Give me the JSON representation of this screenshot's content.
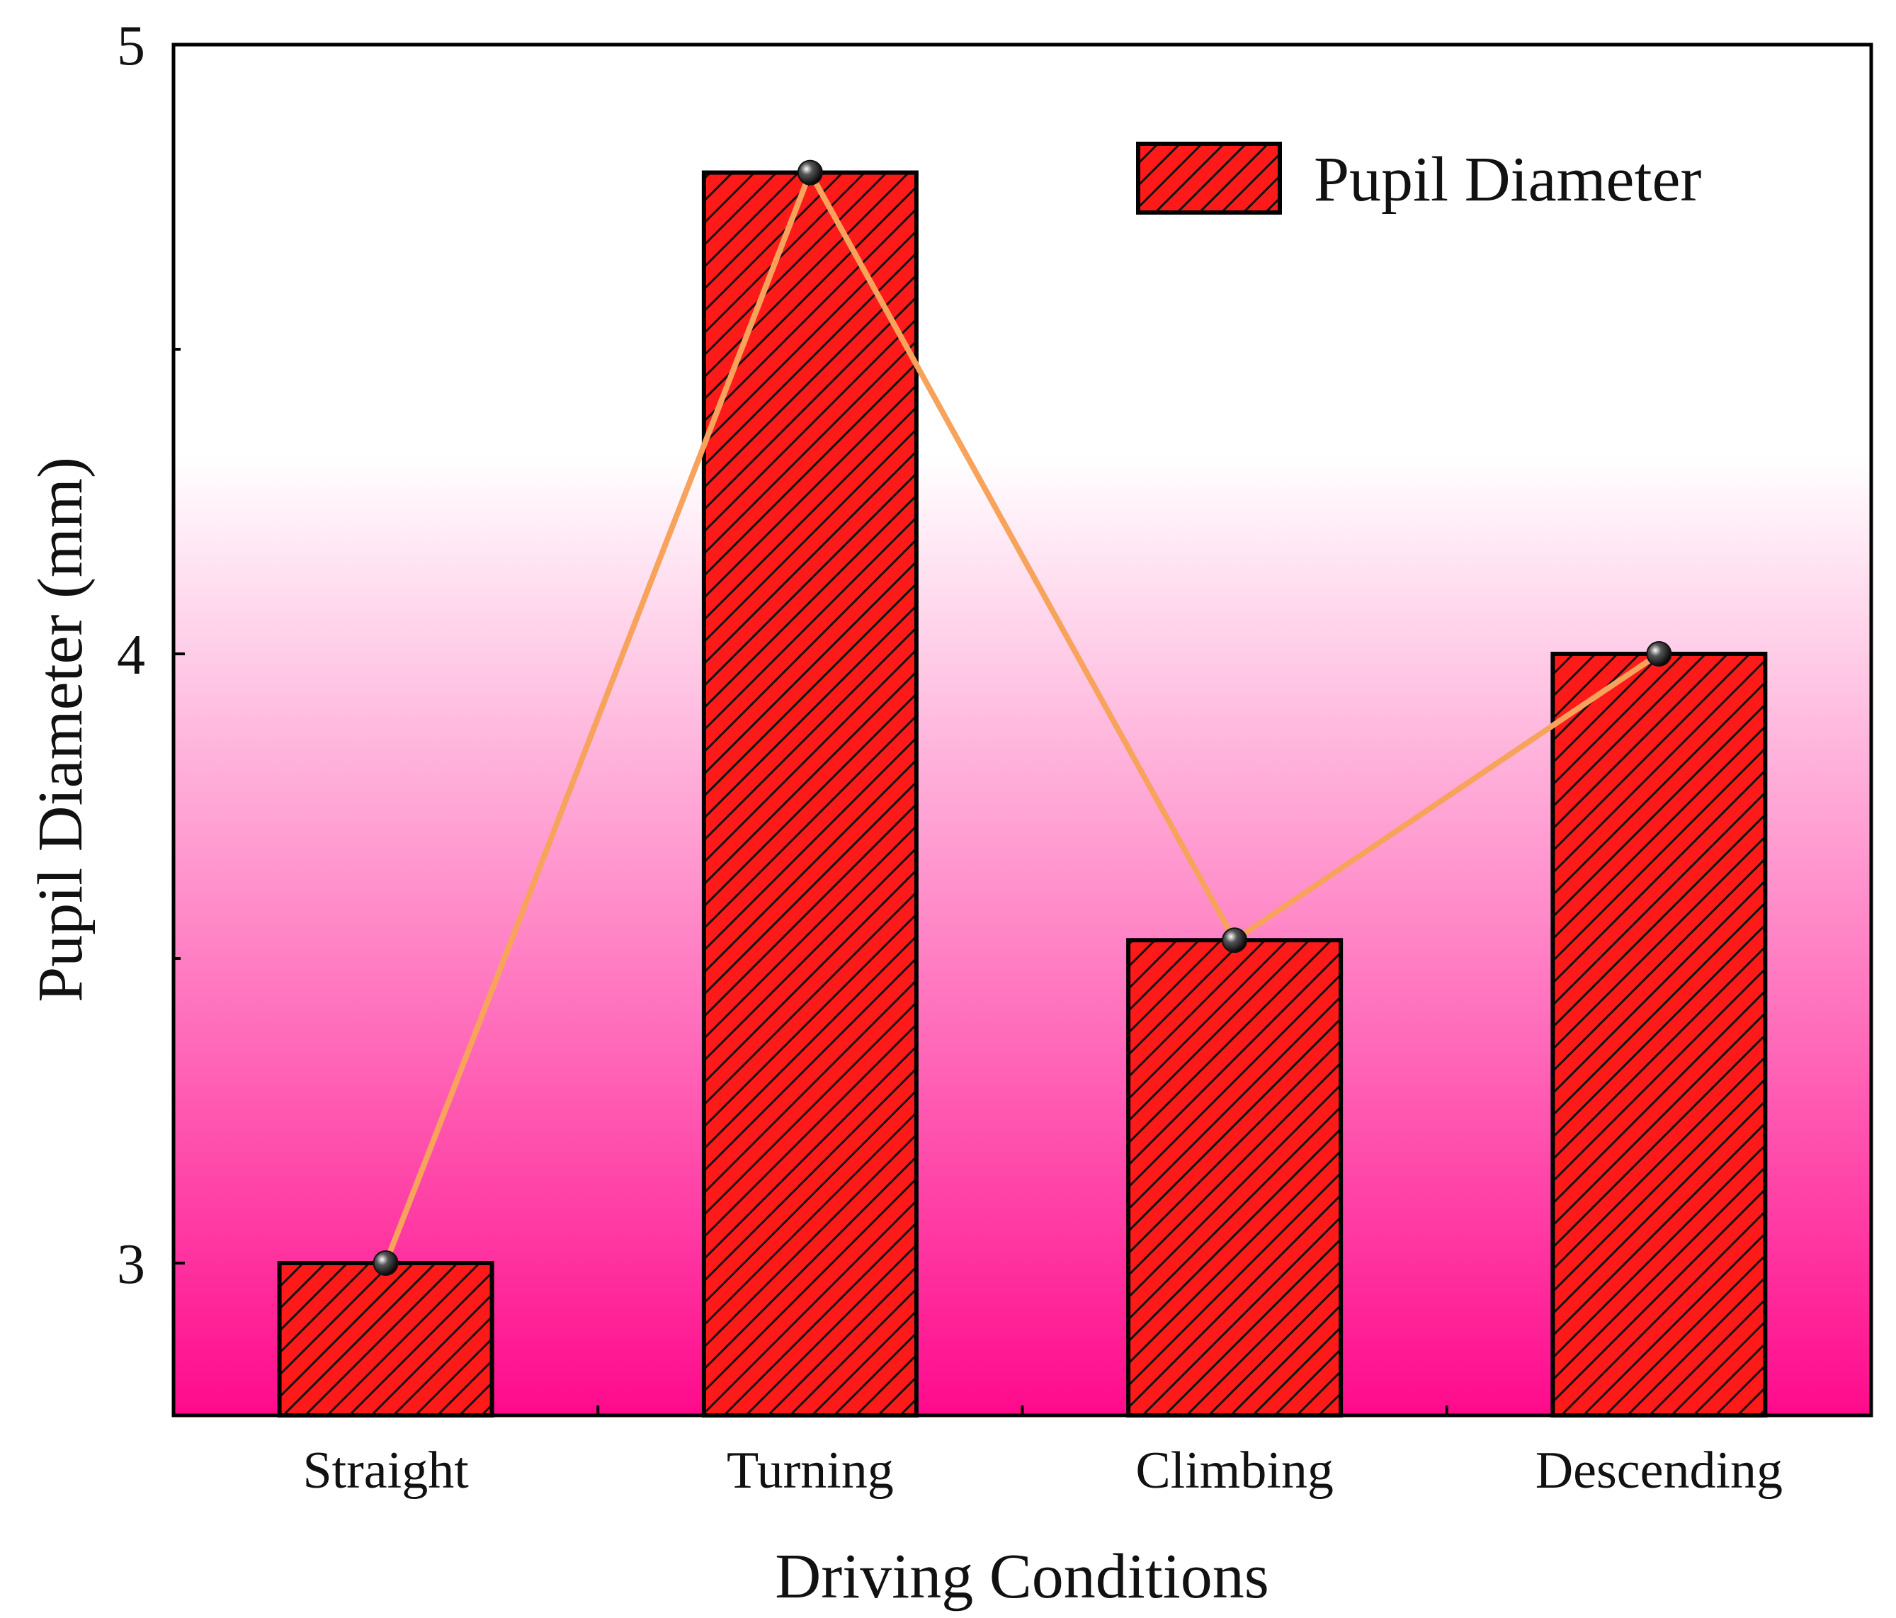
{
  "chart_data": {
    "type": "bar",
    "title": "",
    "xlabel": "Driving Conditions",
    "ylabel": "Pupil Diameter (mm)",
    "ylim": [
      2.75,
      5.0
    ],
    "yticks": [
      3,
      4,
      5
    ],
    "categories": [
      "Straight",
      "Turning",
      "Climbing",
      "Descending"
    ],
    "series": [
      {
        "name": "Pupil Diameter",
        "values": [
          3.0,
          4.79,
          3.53,
          4.0
        ]
      }
    ],
    "overlay_line": {
      "values": [
        3.0,
        4.79,
        3.53,
        4.0
      ],
      "color": "#f7a35c"
    },
    "legend": {
      "label": "Pupil Diameter",
      "position": "top-right"
    },
    "grid": false,
    "colors": {
      "bar_fill": "#ff1a1a",
      "bar_hatch": "#111111",
      "bg_top": "#ffffff",
      "bg_bottom": "#ff0a8c",
      "line": "#f7a35c",
      "marker": "#111111"
    }
  }
}
